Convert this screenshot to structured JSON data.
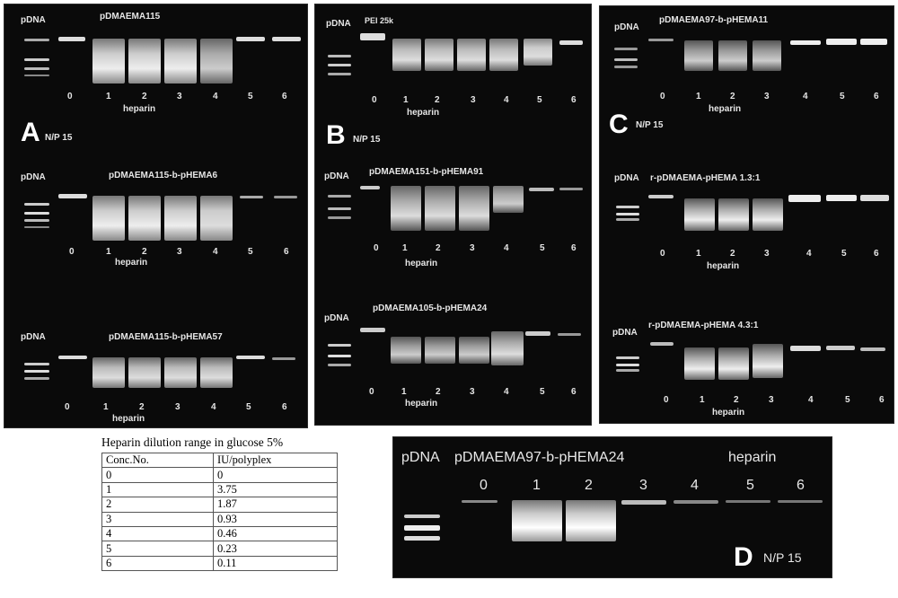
{
  "panelA": {
    "letter": "A",
    "np": "N/P 15",
    "gels": [
      {
        "pdna": "pDNA",
        "title": "pDMAEMA115",
        "lanes": [
          "0",
          "1",
          "2",
          "3",
          "4",
          "5",
          "6"
        ],
        "heparin": "heparin"
      },
      {
        "pdna": "pDNA",
        "title": "pDMAEMA115-b-pHEMA6",
        "lanes": [
          "0",
          "1",
          "2",
          "3",
          "4",
          "5",
          "6"
        ],
        "heparin": "heparin"
      },
      {
        "pdna": "pDNA",
        "title": "pDMAEMA115-b-pHEMA57",
        "lanes": [
          "0",
          "1",
          "2",
          "3",
          "4",
          "5",
          "6"
        ],
        "heparin": "heparin"
      }
    ]
  },
  "panelB": {
    "letter": "B",
    "np": "N/P 15",
    "gels": [
      {
        "pdna": "pDNA",
        "title": "PEI 25k",
        "lanes": [
          "0",
          "1",
          "2",
          "3",
          "4",
          "5",
          "6"
        ],
        "heparin": "heparin"
      },
      {
        "pdna": "pDNA",
        "title": "pDMAEMA151-b-pHEMA91",
        "lanes": [
          "0",
          "1",
          "2",
          "3",
          "4",
          "5",
          "6"
        ],
        "heparin": "heparin"
      },
      {
        "pdna": "pDNA",
        "title": "pDMAEMA105-b-pHEMA24",
        "lanes": [
          "0",
          "1",
          "2",
          "3",
          "4",
          "5",
          "6"
        ],
        "heparin": "heparin"
      }
    ]
  },
  "panelC": {
    "letter": "C",
    "np": "N/P 15",
    "gels": [
      {
        "pdna": "pDNA",
        "title": "pDMAEMA97-b-pHEMA11",
        "lanes": [
          "0",
          "1",
          "2",
          "3",
          "4",
          "5",
          "6"
        ],
        "heparin": "heparin"
      },
      {
        "pdna": "pDNA",
        "title": "r-pDMAEMA-pHEMA 1.3:1",
        "lanes": [
          "0",
          "1",
          "2",
          "3",
          "4",
          "5",
          "6"
        ],
        "heparin": "heparin"
      },
      {
        "pdna": "pDNA",
        "title": "r-pDMAEMA-pHEMA 4.3:1",
        "lanes": [
          "0",
          "1",
          "2",
          "3",
          "4",
          "5",
          "6"
        ],
        "heparin": "heparin"
      }
    ]
  },
  "panelD": {
    "letter": "D",
    "np": "N/P 15",
    "pdna": "pDNA",
    "title": "pDMAEMA97-b-pHEMA24",
    "heparin": "heparin",
    "lanes": [
      "0",
      "1",
      "2",
      "3",
      "4",
      "5",
      "6"
    ]
  },
  "dilution_table": {
    "title": "Heparin dilution range in glucose 5%",
    "headers": [
      "Conc.No.",
      "IU/polyplex"
    ],
    "rows": [
      [
        "0",
        "0"
      ],
      [
        "1",
        "3.75"
      ],
      [
        "2",
        "1.87"
      ],
      [
        "3",
        "0.93"
      ],
      [
        "4",
        "0.46"
      ],
      [
        "5",
        "0.23"
      ],
      [
        "6",
        "0.11"
      ]
    ]
  }
}
